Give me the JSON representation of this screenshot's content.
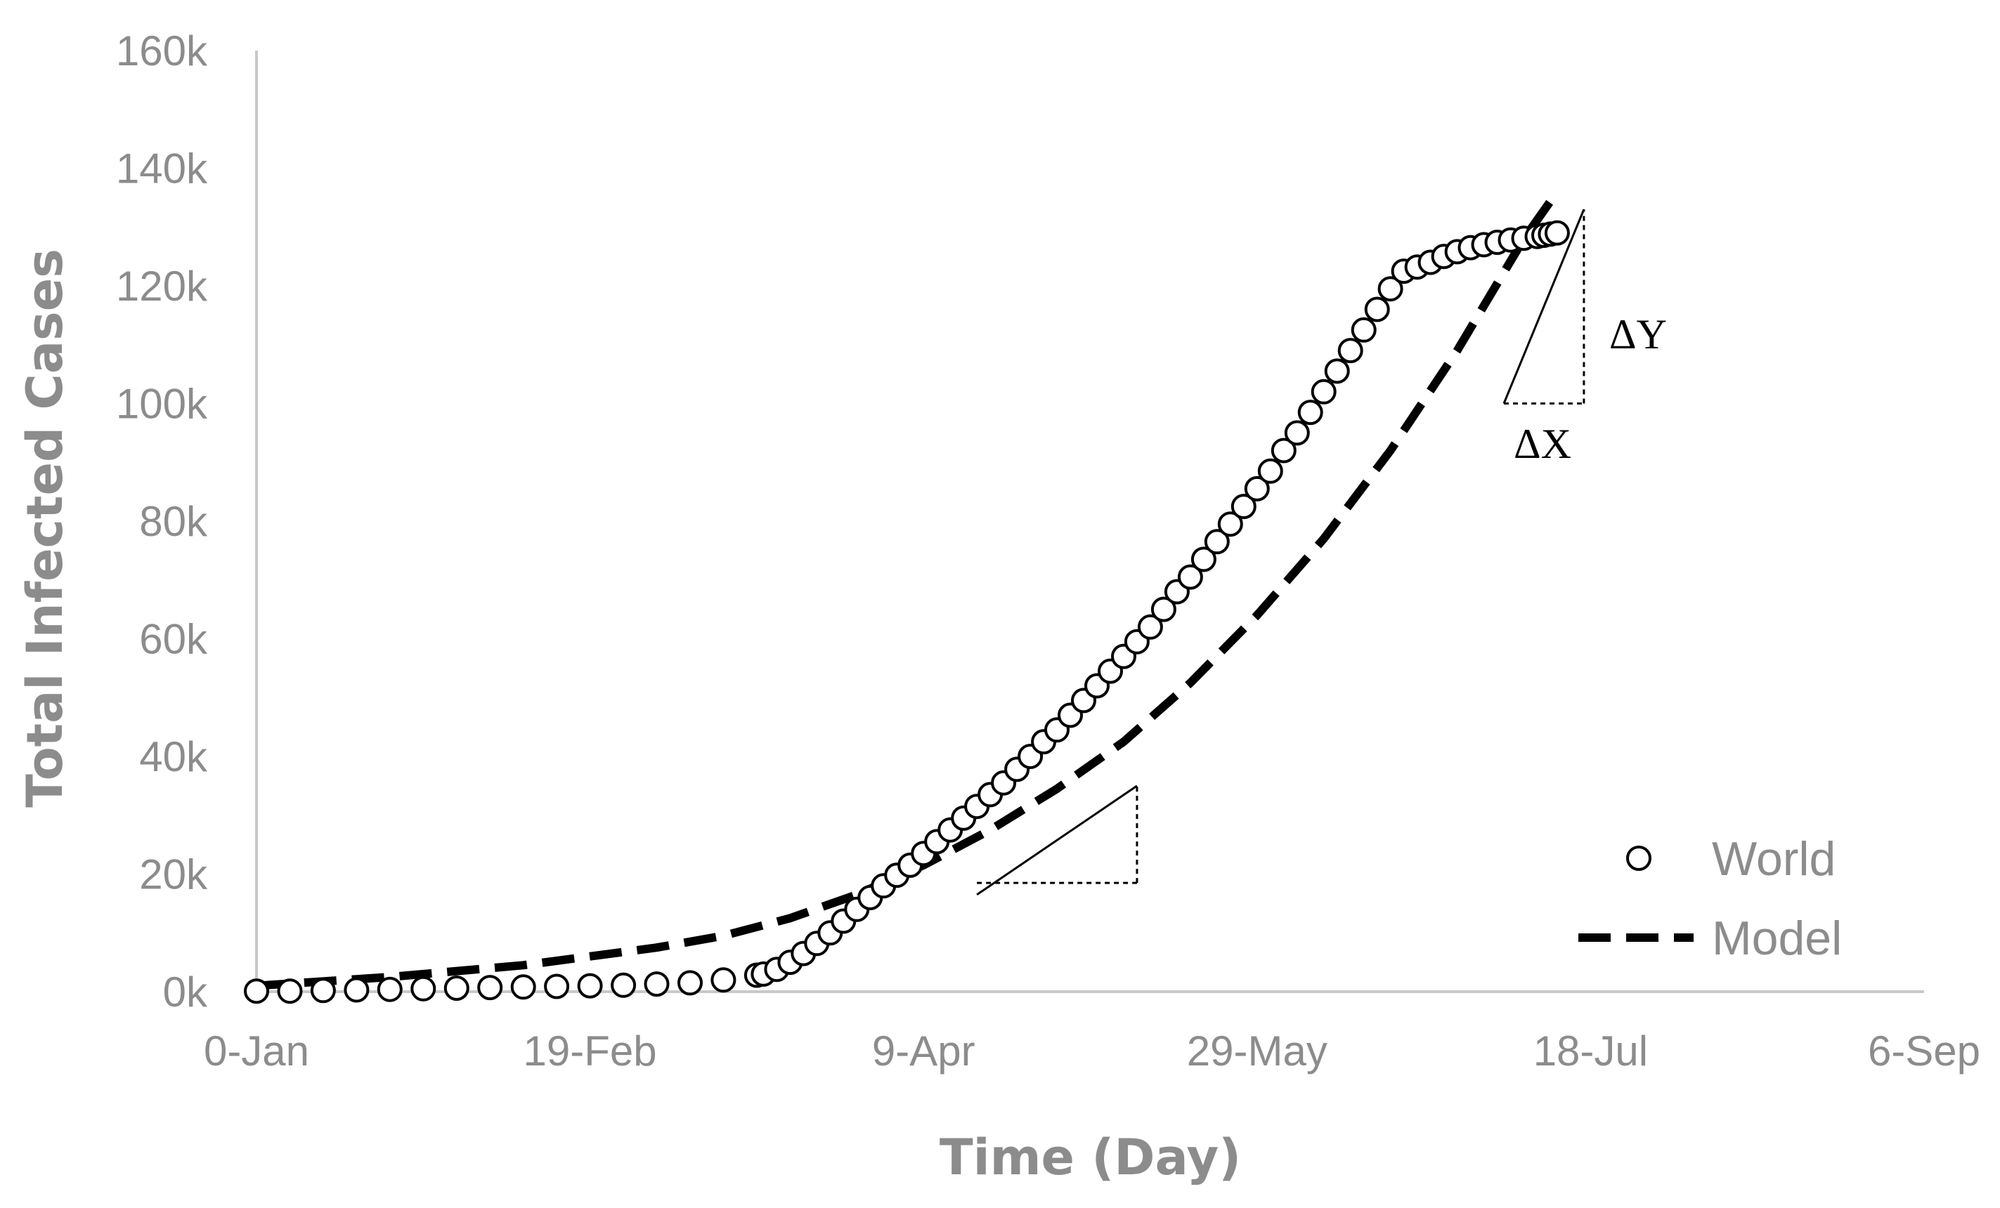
{
  "chart_data": {
    "type": "scatter",
    "title": "",
    "xlabel": "Time (Day)",
    "ylabel": "Total Infected Cases",
    "x_tick_labels": [
      "0-Jan",
      "19-Feb",
      "9-Apr",
      "29-May",
      "18-Jul",
      "6-Sep"
    ],
    "y_tick_labels": [
      "0k",
      "20k",
      "40k",
      "60k",
      "80k",
      "100k",
      "120k",
      "140k",
      "160k"
    ],
    "xlim": [
      0,
      250
    ],
    "ylim": [
      0,
      160
    ],
    "y_unit": "thousands",
    "grid": false,
    "legend_position": "bottom-right",
    "series": [
      {
        "name": "World",
        "style": "open-circle-markers",
        "color": "#000000",
        "x": [
          0,
          5,
          10,
          15,
          20,
          25,
          30,
          35,
          40,
          45,
          50,
          55,
          60,
          65,
          70,
          75,
          76,
          78,
          80,
          82,
          84,
          86,
          88,
          90,
          92,
          94,
          96,
          98,
          100,
          102,
          104,
          106,
          108,
          110,
          112,
          114,
          116,
          118,
          120,
          122,
          124,
          126,
          128,
          130,
          132,
          134,
          136,
          138,
          140,
          142,
          144,
          146,
          148,
          150,
          152,
          154,
          156,
          158,
          160,
          162,
          164,
          166,
          168,
          170,
          172,
          174,
          176,
          178,
          180,
          182,
          184,
          186,
          188,
          190,
          192,
          193,
          194,
          195
        ],
        "y": [
          0.1,
          0.1,
          0.2,
          0.3,
          0.4,
          0.5,
          0.6,
          0.7,
          0.8,
          0.9,
          1.0,
          1.1,
          1.3,
          1.5,
          2.0,
          2.8,
          3.0,
          3.8,
          5.0,
          6.5,
          8.2,
          10.0,
          12.0,
          14.0,
          16.0,
          18.0,
          19.8,
          21.5,
          23.5,
          25.5,
          27.5,
          29.5,
          31.5,
          33.5,
          35.5,
          37.8,
          40.0,
          42.5,
          44.5,
          47.0,
          49.5,
          52.0,
          54.5,
          57.0,
          59.5,
          62.0,
          65.0,
          68.0,
          70.5,
          73.5,
          76.5,
          79.5,
          82.5,
          85.5,
          88.5,
          92.0,
          95.0,
          98.5,
          102.0,
          105.5,
          109.0,
          112.5,
          116.0,
          119.5,
          122.5,
          123.2,
          124.0,
          125.0,
          125.8,
          126.5,
          127.0,
          127.4,
          127.8,
          128.1,
          128.4,
          128.6,
          128.8,
          129.0
        ]
      },
      {
        "name": "Model",
        "style": "thick-dashed-line",
        "color": "#000000",
        "x": [
          0,
          20,
          40,
          60,
          70,
          80,
          90,
          100,
          110,
          120,
          130,
          140,
          150,
          160,
          170,
          180,
          190,
          195
        ],
        "y": [
          1.0,
          2.5,
          4.5,
          7.5,
          9.5,
          12.5,
          16.5,
          21.5,
          27.5,
          34.5,
          42.5,
          52.5,
          64.0,
          77.0,
          92.0,
          109.0,
          128.0,
          136.0
        ]
      }
    ],
    "annotations": [
      {
        "label": "",
        "type": "tangent-triangle",
        "tangent_from": [
          108,
          16.5
        ],
        "tangent_to": [
          132,
          35
        ],
        "corner": [
          132,
          18.5
        ]
      },
      {
        "label": "ΔX",
        "type": "tangent-triangle",
        "tangent_from": [
          187,
          100
        ],
        "tangent_to": [
          199,
          133
        ],
        "corner": [
          199,
          100
        ]
      },
      {
        "label": "ΔY",
        "type": "text"
      }
    ]
  }
}
